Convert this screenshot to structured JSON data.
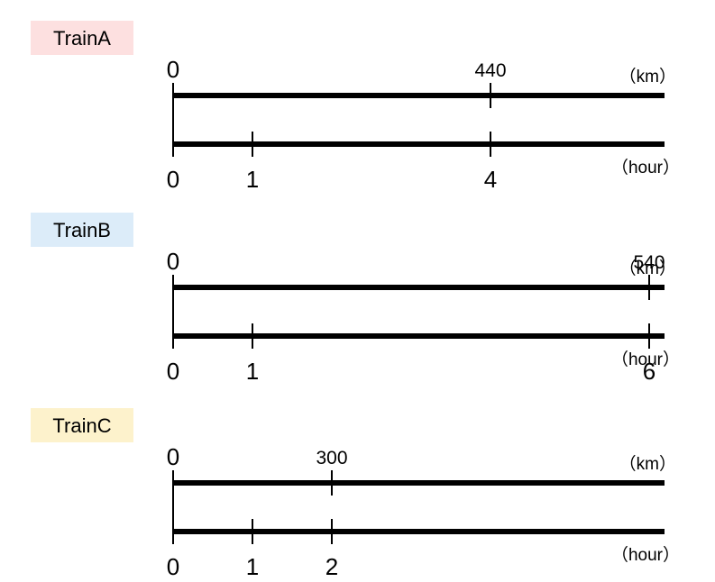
{
  "units": {
    "distance": "（km）",
    "time": "（hour）"
  },
  "trains": [
    {
      "name": "TrainA",
      "color": "#fde0e0",
      "distance_ticks": [
        {
          "label": "0",
          "value": 0
        },
        {
          "label": "440",
          "value": 4
        }
      ],
      "time_ticks": [
        {
          "label": "0",
          "value": 0
        },
        {
          "label": "1",
          "value": 1
        },
        {
          "label": "4",
          "value": 4
        }
      ]
    },
    {
      "name": "TrainB",
      "color": "#dcecf9",
      "distance_ticks": [
        {
          "label": "0",
          "value": 0
        },
        {
          "label": "540",
          "value": 6
        }
      ],
      "time_ticks": [
        {
          "label": "0",
          "value": 0
        },
        {
          "label": "1",
          "value": 1
        },
        {
          "label": "6",
          "value": 6
        }
      ]
    },
    {
      "name": "TrainC",
      "color": "#fdf2cc",
      "distance_ticks": [
        {
          "label": "0",
          "value": 0
        },
        {
          "label": "300",
          "value": 2
        }
      ],
      "time_ticks": [
        {
          "label": "0",
          "value": 0
        },
        {
          "label": "1",
          "value": 1
        },
        {
          "label": "2",
          "value": 2
        }
      ]
    }
  ]
}
